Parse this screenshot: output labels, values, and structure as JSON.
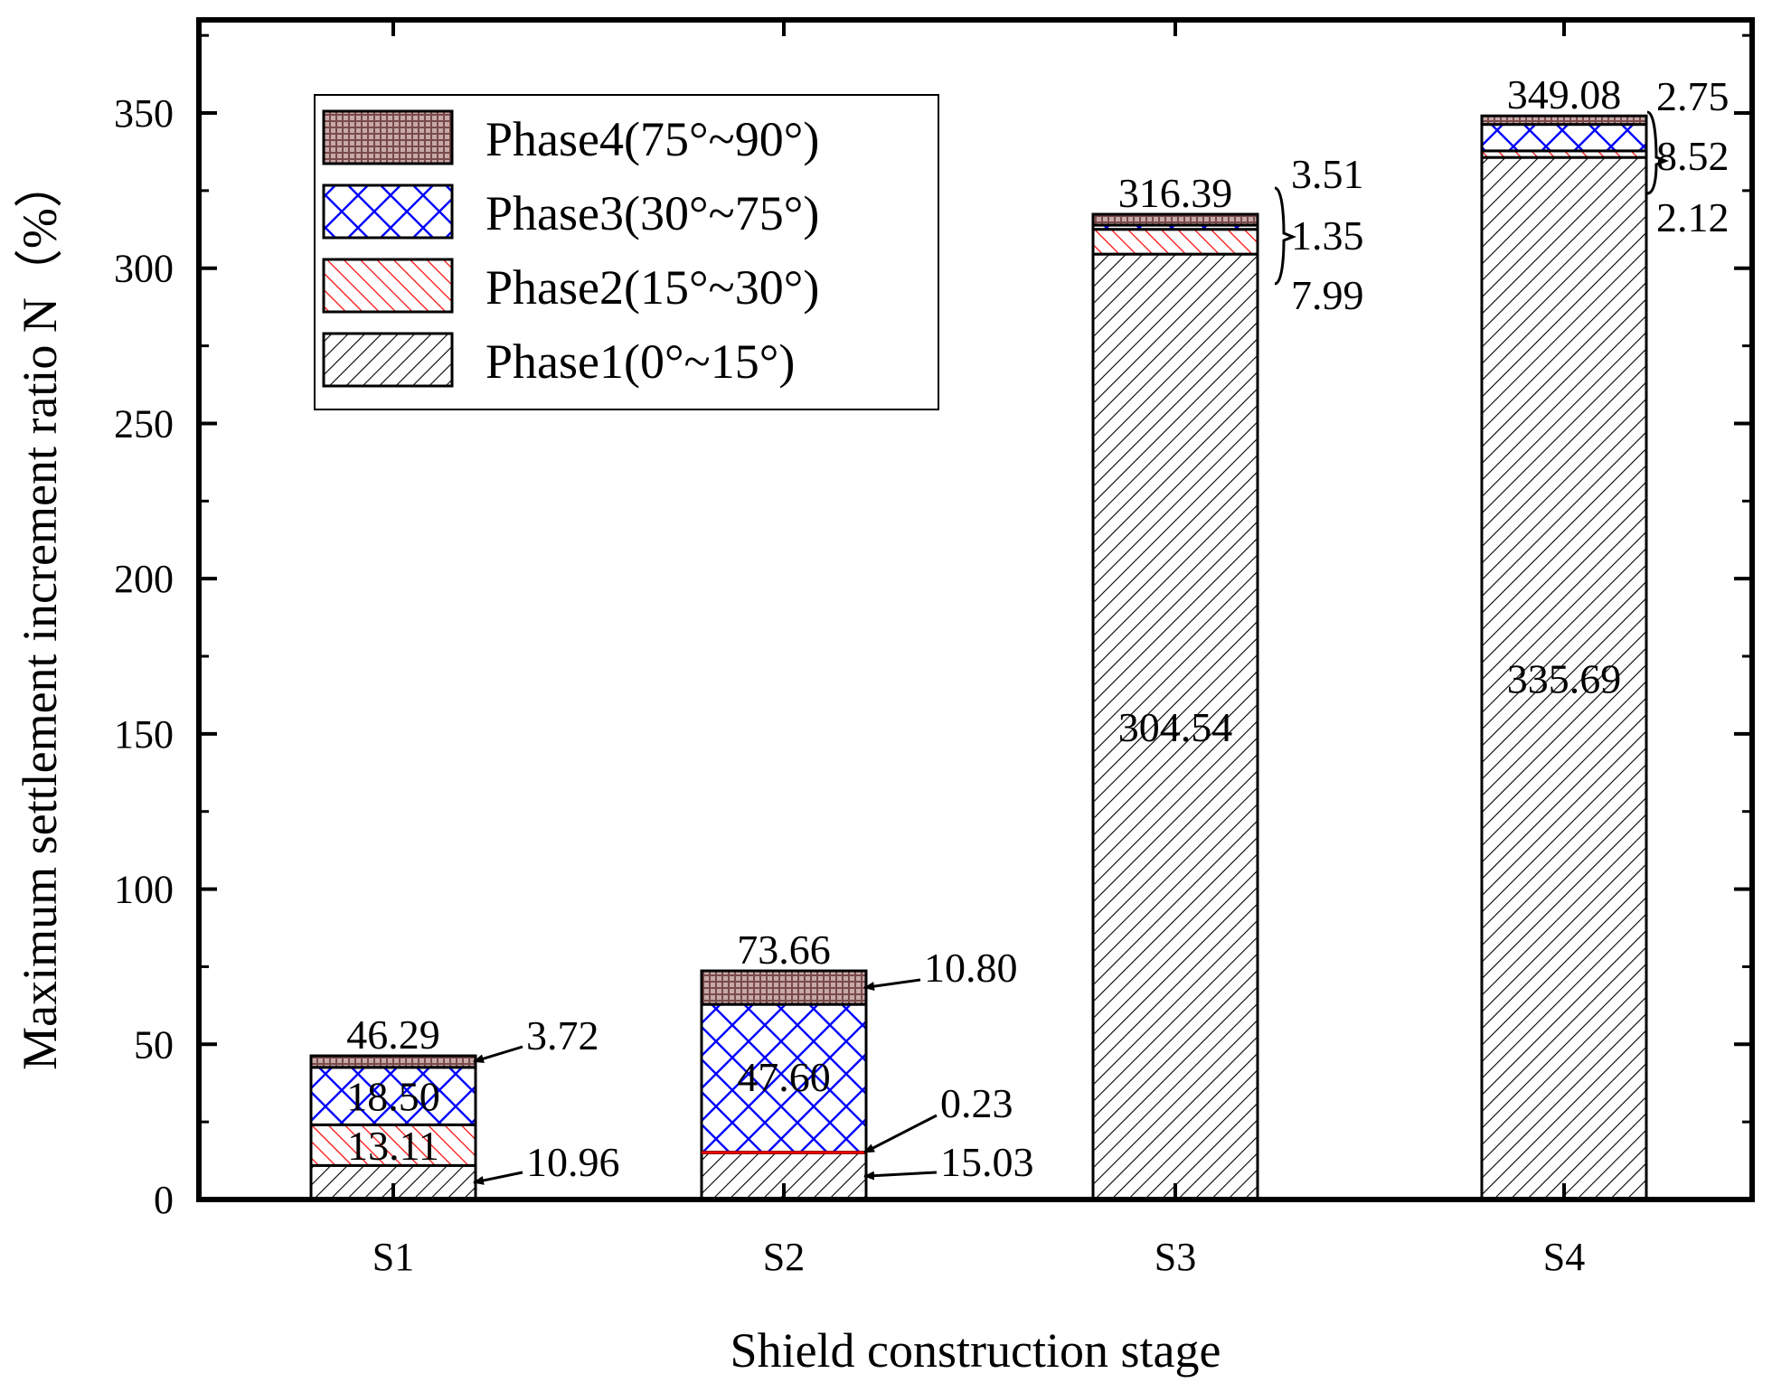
{
  "chart_data": {
    "type": "bar",
    "stacked": true,
    "xlabel": "Shield construction stage",
    "ylabel": "Maximum settlement increment ratio N（%）",
    "ylim": [
      0,
      380
    ],
    "yticks": [
      "0",
      "50",
      "100",
      "150",
      "200",
      "250",
      "300",
      "350"
    ],
    "categories": [
      "S1",
      "S2",
      "S3",
      "S4"
    ],
    "series": [
      {
        "name": "Phase1(0°~15°)",
        "values": [
          10.96,
          15.03,
          304.54,
          335.69
        ],
        "labels": [
          "10.96",
          "15.03",
          "304.54",
          "335.69"
        ],
        "pattern": "pat-p1",
        "stroke": "#000000"
      },
      {
        "name": "Phase2(15°~30°)",
        "values": [
          13.11,
          0.23,
          7.99,
          2.12
        ],
        "labels": [
          "13.11",
          "0.23",
          "7.99",
          "2.12"
        ],
        "pattern": "pat-p2",
        "stroke": "#000000"
      },
      {
        "name": "Phase3(30°~75°)",
        "values": [
          18.5,
          47.6,
          1.35,
          8.52
        ],
        "labels": [
          "18.50",
          "47.60",
          "1.35",
          "8.52"
        ],
        "pattern": "pat-p3",
        "stroke": "#000000"
      },
      {
        "name": "Phase4(75°~90°)",
        "values": [
          3.72,
          10.8,
          3.51,
          2.75
        ],
        "labels": [
          "3.72",
          "10.80",
          "3.51",
          "2.75"
        ],
        "pattern": "pat-p4",
        "stroke": "#000000"
      }
    ],
    "totals": [
      "46.29",
      "73.66",
      "316.39",
      "349.08"
    ],
    "legend": {
      "position": "top-left",
      "order": [
        3,
        2,
        1,
        0
      ]
    },
    "colors": {
      "phase2": "#ff0000",
      "phase3": "#0000ff",
      "phase4": "#8b5a5a",
      "axis": "#000000"
    }
  }
}
